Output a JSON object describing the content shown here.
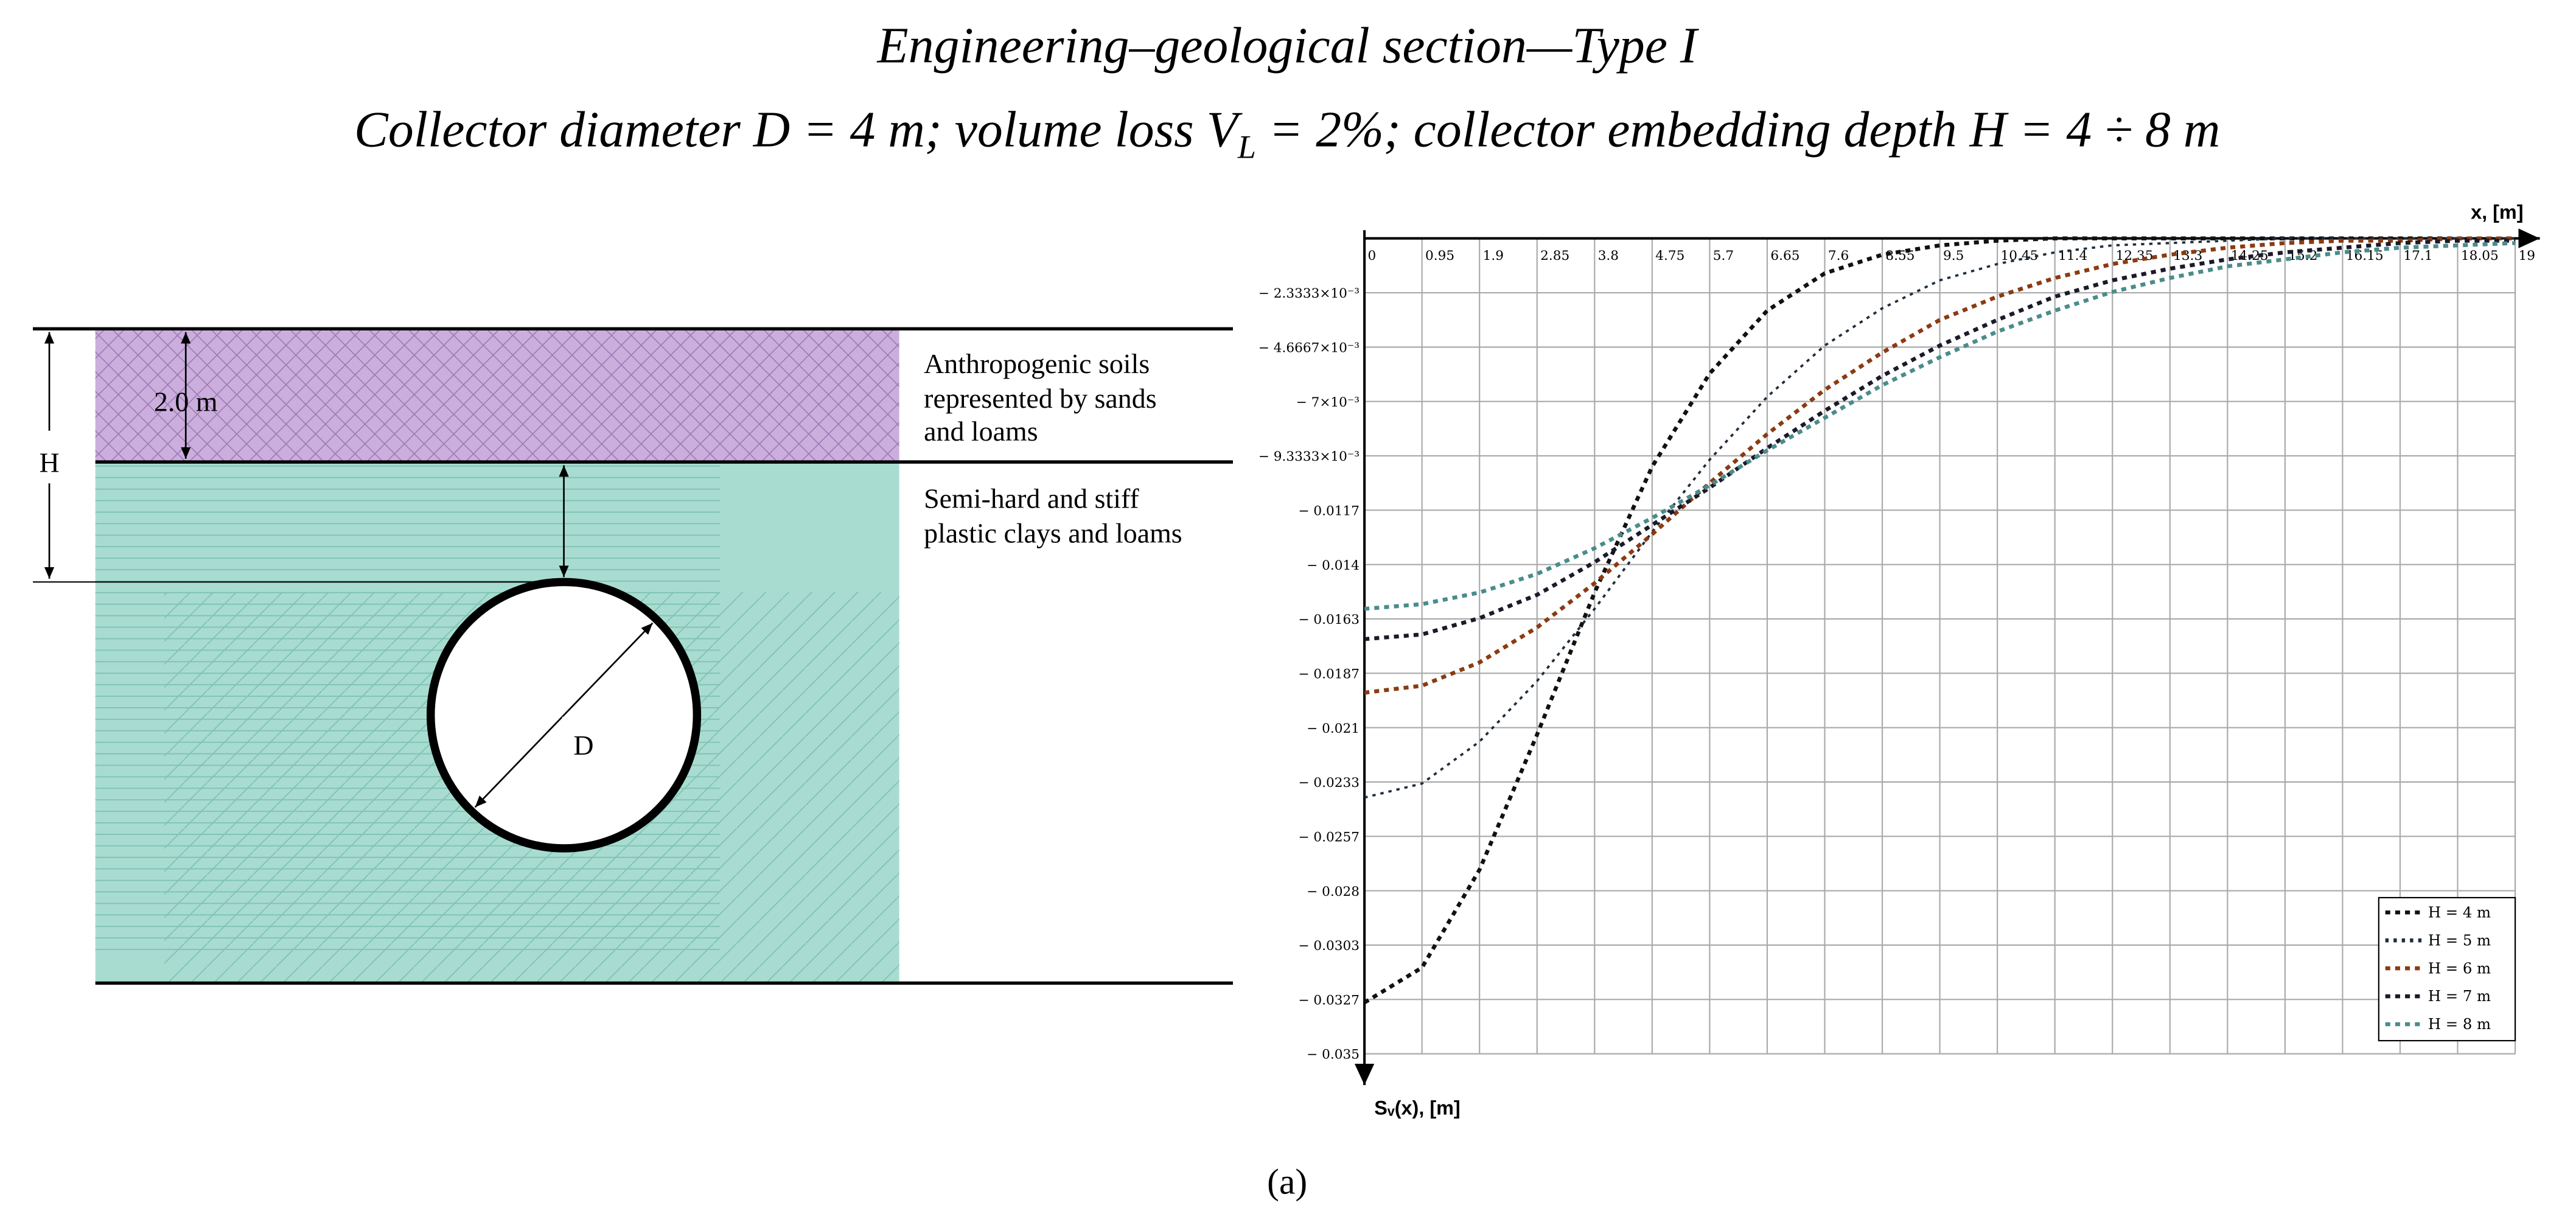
{
  "title": "Engineering–geological section—Type I",
  "subtitle": [
    "Collector diameter D = 4 m; volume loss V",
    "L",
    " = 2%; collector embedding depth H = 4 ÷ 8 m"
  ],
  "caption": "(a)",
  "diagram": {
    "depth_label": "H",
    "layer_thickness": "2.0 m",
    "diameter_label": "D",
    "layers": [
      {
        "lines": [
          "Anthropogenic soils",
          "represented by sands",
          "and loams"
        ]
      },
      {
        "lines": [
          "Semi-hard and stiff",
          "plastic clays and loams"
        ]
      }
    ]
  },
  "chart_data": {
    "type": "line",
    "x_label": "x, [m]",
    "y_label": "Sᵥ(x), [m]",
    "x": [
      0,
      0.95,
      1.9,
      2.85,
      3.8,
      4.75,
      5.7,
      6.65,
      7.6,
      8.55,
      9.5,
      10.45,
      11.4,
      12.35,
      13.3,
      14.25,
      15.2,
      16.15,
      17.1,
      18.05,
      19
    ],
    "xlim": [
      0,
      19
    ],
    "xticks": [
      0,
      0.95,
      1.9,
      2.85,
      3.8,
      4.75,
      5.7,
      6.65,
      7.6,
      8.55,
      9.5,
      10.45,
      11.4,
      12.35,
      13.3,
      14.25,
      15.2,
      16.15,
      17.1,
      18.05,
      19
    ],
    "ylim": [
      -0.035,
      0
    ],
    "yticks": [
      {
        "value": -0.0023333,
        "label": "− 2.3333×10⁻³"
      },
      {
        "value": -0.0046667,
        "label": "− 4.6667×10⁻³"
      },
      {
        "value": -0.007,
        "label": "− 7×10⁻³"
      },
      {
        "value": -0.0093333,
        "label": "− 9.3333×10⁻³"
      },
      {
        "value": -0.0116667,
        "label": "− 0.0117"
      },
      {
        "value": -0.014,
        "label": "− 0.014"
      },
      {
        "value": -0.0163333,
        "label": "− 0.0163"
      },
      {
        "value": -0.0186667,
        "label": "− 0.0187"
      },
      {
        "value": -0.021,
        "label": "− 0.021"
      },
      {
        "value": -0.0233333,
        "label": "− 0.0233"
      },
      {
        "value": -0.0256667,
        "label": "− 0.0257"
      },
      {
        "value": -0.028,
        "label": "− 0.028"
      },
      {
        "value": -0.0303333,
        "label": "− 0.0303"
      },
      {
        "value": -0.0326667,
        "label": "− 0.0327"
      },
      {
        "value": -0.035,
        "label": "− 0.035"
      }
    ],
    "grid": true,
    "legend": "lower right",
    "series": [
      {
        "name": "H = 4 m",
        "color": "#111111",
        "values": [
          -0.0328,
          -0.0313,
          -0.0271,
          -0.0213,
          -0.0152,
          -0.0098,
          -0.0058,
          -0.0031,
          -0.0015,
          -0.0007,
          -0.0003,
          -0.0001,
          0,
          0,
          0,
          0,
          0,
          0,
          0,
          0,
          0
        ]
      },
      {
        "name": "H = 5 m",
        "color": "#1f2d3d",
        "values": [
          -0.024,
          -0.0234,
          -0.0216,
          -0.019,
          -0.0159,
          -0.0126,
          -0.0095,
          -0.0068,
          -0.0046,
          -0.003,
          -0.0018,
          -0.0011,
          -0.0006,
          -0.0003,
          -0.0002,
          -0.0001,
          0,
          0,
          0,
          0,
          0
        ]
      },
      {
        "name": "H = 6 m",
        "color": "#8a3b12",
        "values": [
          -0.0195,
          -0.0192,
          -0.0182,
          -0.0167,
          -0.0148,
          -0.0127,
          -0.0105,
          -0.0084,
          -0.0065,
          -0.0049,
          -0.0035,
          -0.0025,
          -0.0017,
          -0.0011,
          -0.0007,
          -0.0004,
          -0.0002,
          -0.0001,
          -0.0001,
          0,
          0
        ]
      },
      {
        "name": "H = 7 m",
        "color": "#1a1a2a",
        "values": [
          -0.0172,
          -0.017,
          -0.0163,
          -0.0153,
          -0.0139,
          -0.0123,
          -0.0107,
          -0.009,
          -0.0074,
          -0.0059,
          -0.0046,
          -0.0035,
          -0.0025,
          -0.0018,
          -0.0013,
          -0.0009,
          -0.0006,
          -0.0004,
          -0.0002,
          -0.0001,
          -0.0001
        ]
      },
      {
        "name": "H = 8 m",
        "color": "#4a8c8c",
        "values": [
          -0.0159,
          -0.0157,
          -0.0152,
          -0.0144,
          -0.0133,
          -0.012,
          -0.0106,
          -0.0091,
          -0.0077,
          -0.0063,
          -0.0051,
          -0.004,
          -0.0031,
          -0.0023,
          -0.0017,
          -0.0012,
          -0.0009,
          -0.0006,
          -0.0004,
          -0.0003,
          -0.0002
        ]
      }
    ]
  }
}
